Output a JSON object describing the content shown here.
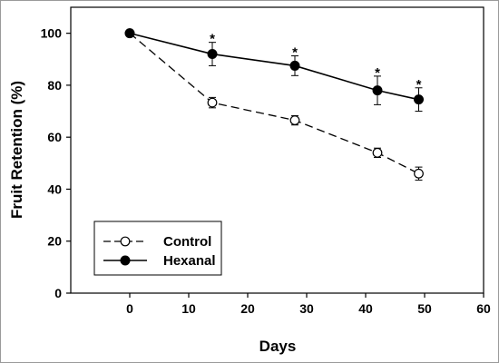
{
  "chart_data": {
    "type": "line",
    "title": "",
    "xlabel": "Days",
    "ylabel": "Fruit Retention (%)",
    "xlim": [
      -10,
      60
    ],
    "ylim": [
      0,
      110
    ],
    "xticks": [
      0,
      10,
      20,
      30,
      40,
      50,
      60
    ],
    "yticks": [
      0,
      20,
      40,
      60,
      80,
      100
    ],
    "grid": false,
    "legend": "bottom-left",
    "series": [
      {
        "name": "Control",
        "marker": "open-circle",
        "line": "dashed",
        "color": "#000000",
        "x": [
          0,
          14,
          28,
          42,
          49
        ],
        "y": [
          100,
          73.3,
          66.5,
          54,
          46
        ],
        "err": [
          0,
          2,
          1.8,
          1.8,
          2.5
        ]
      },
      {
        "name": "Hexanal",
        "marker": "filled-circle",
        "line": "solid",
        "color": "#000000",
        "x": [
          0,
          14,
          28,
          42,
          49
        ],
        "y": [
          100,
          92,
          87.5,
          78,
          74.5
        ],
        "err": [
          0,
          4.5,
          3.8,
          5.5,
          4.5
        ]
      }
    ],
    "annotations": [
      {
        "x": 14,
        "y": 96.5,
        "text": "*"
      },
      {
        "x": 28,
        "y": 91.3,
        "text": "*"
      },
      {
        "x": 42,
        "y": 83.5,
        "text": "*"
      },
      {
        "x": 49,
        "y": 79,
        "text": "*"
      }
    ]
  }
}
